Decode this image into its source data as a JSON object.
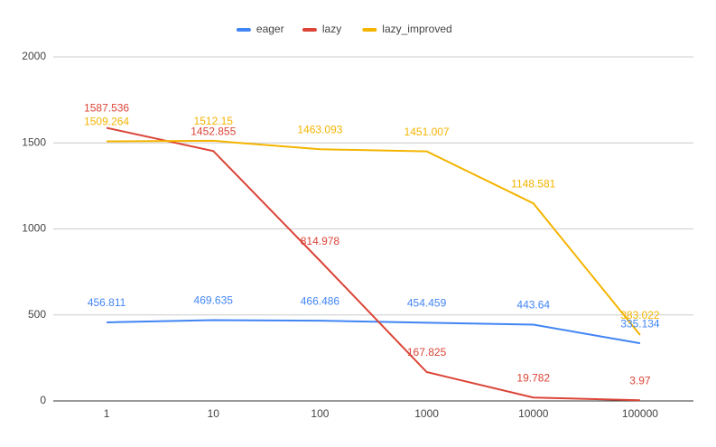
{
  "chart_data": {
    "type": "line",
    "categories": [
      "1",
      "10",
      "100",
      "1000",
      "10000",
      "100000"
    ],
    "series": [
      {
        "name": "eager",
        "color": "#4285f4",
        "values": [
          456.811,
          469.635,
          466.486,
          454.459,
          443.64,
          335.134
        ]
      },
      {
        "name": "lazy",
        "color": "#db4437",
        "values": [
          1587.536,
          1452.855,
          814.978,
          167.825,
          19.782,
          3.97
        ]
      },
      {
        "name": "lazy_improved",
        "color": "#f4b400",
        "values": [
          1509.264,
          1512.15,
          1463.093,
          1451.007,
          1148.581,
          383.022
        ]
      }
    ],
    "ylim": [
      0,
      2000
    ],
    "yticks": [
      0,
      500,
      1000,
      1500,
      2000
    ],
    "grid": true,
    "legend": "top"
  }
}
